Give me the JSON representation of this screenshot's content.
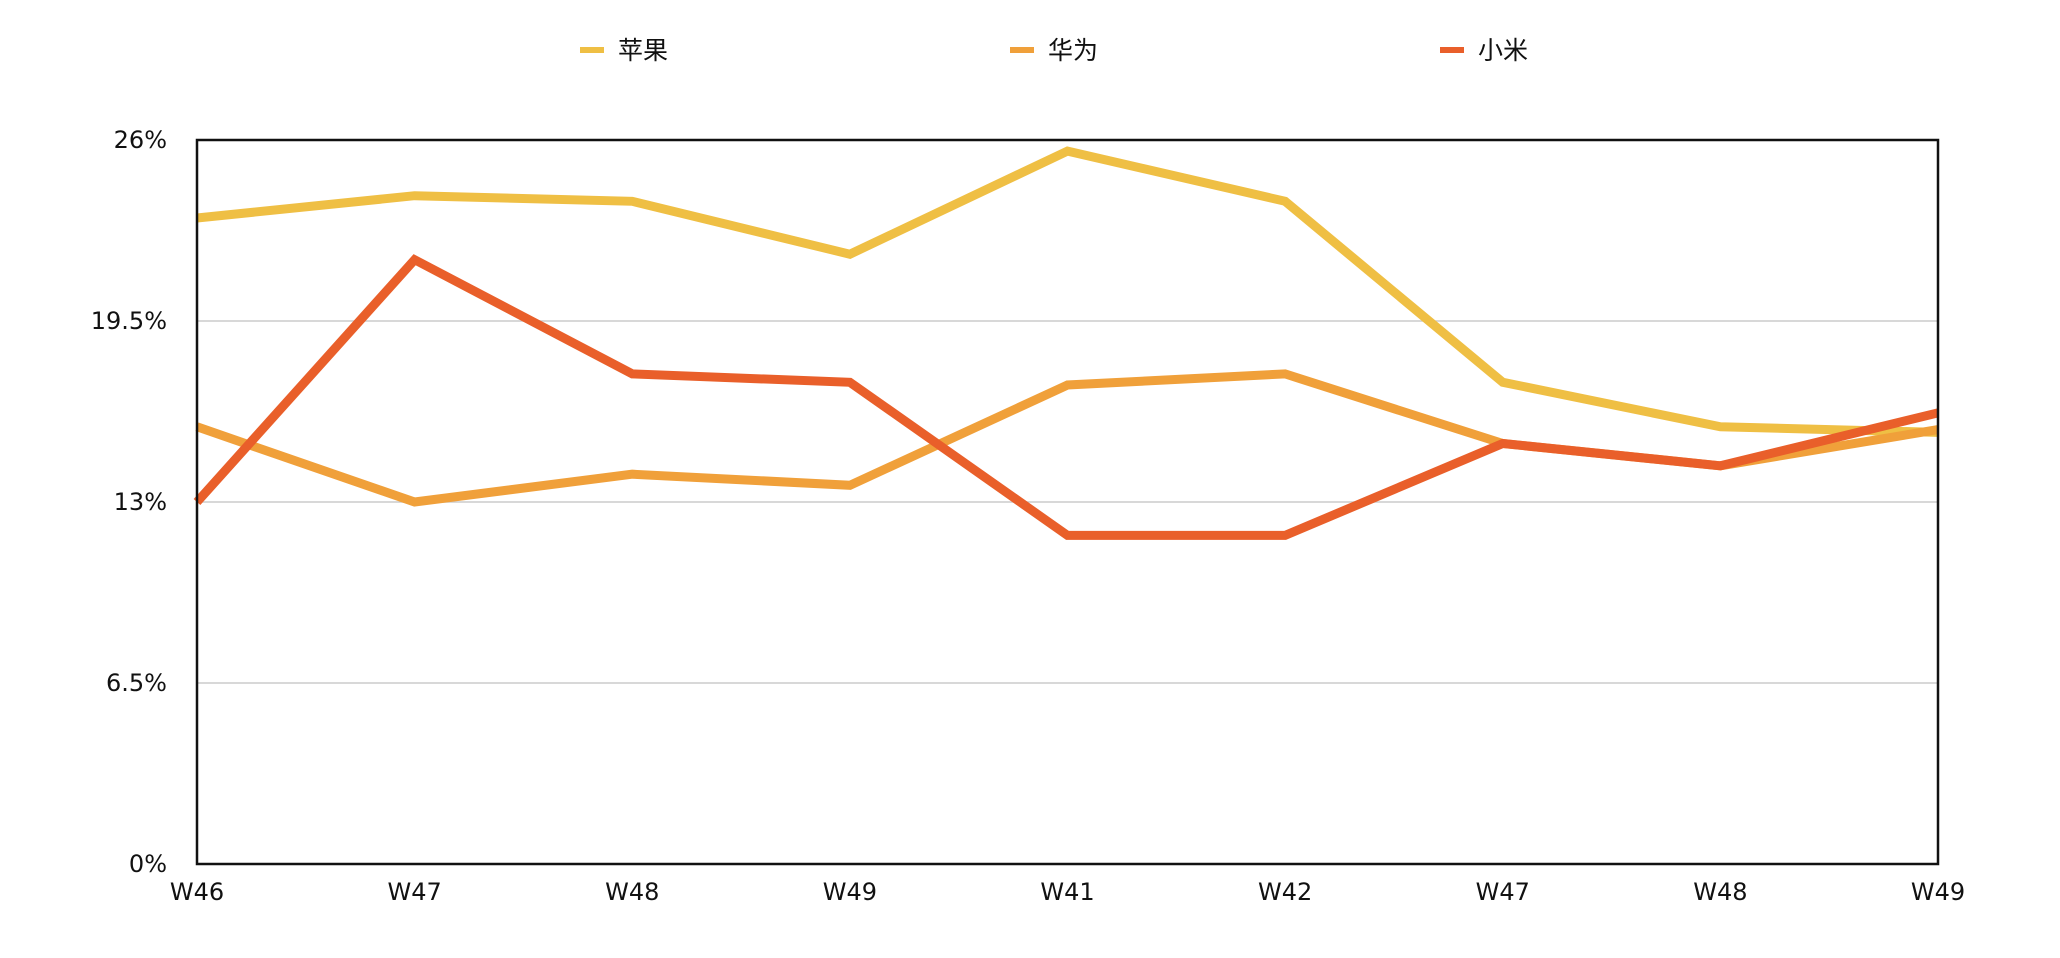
{
  "chart_data": {
    "type": "line",
    "title": "",
    "xlabel": "",
    "ylabel": "",
    "categories": [
      "W46",
      "W47",
      "W48",
      "W49",
      "W41",
      "W42",
      "W47",
      "W48",
      "W49"
    ],
    "y_ticks": [
      "0%",
      "6.5%",
      "13%",
      "19.5%",
      "26%"
    ],
    "y_tick_values": [
      0,
      6.5,
      13,
      19.5,
      26
    ],
    "ylim": [
      0,
      26
    ],
    "y_unit": "%",
    "grid": "horizontal",
    "legend_position": "top",
    "series": [
      {
        "name": "苹果",
        "color": "#EFBF44",
        "values": [
          23.2,
          24.0,
          23.8,
          21.9,
          25.6,
          23.8,
          17.3,
          15.7,
          15.5
        ]
      },
      {
        "name": "华为",
        "color": "#F0A03A",
        "values": [
          15.7,
          13.0,
          14.0,
          13.6,
          17.2,
          17.6,
          15.1,
          14.3,
          15.6
        ]
      },
      {
        "name": "小米",
        "color": "#E95F2A",
        "values": [
          13.0,
          21.7,
          17.6,
          17.3,
          11.8,
          11.8,
          15.1,
          14.3,
          16.2
        ]
      }
    ]
  }
}
